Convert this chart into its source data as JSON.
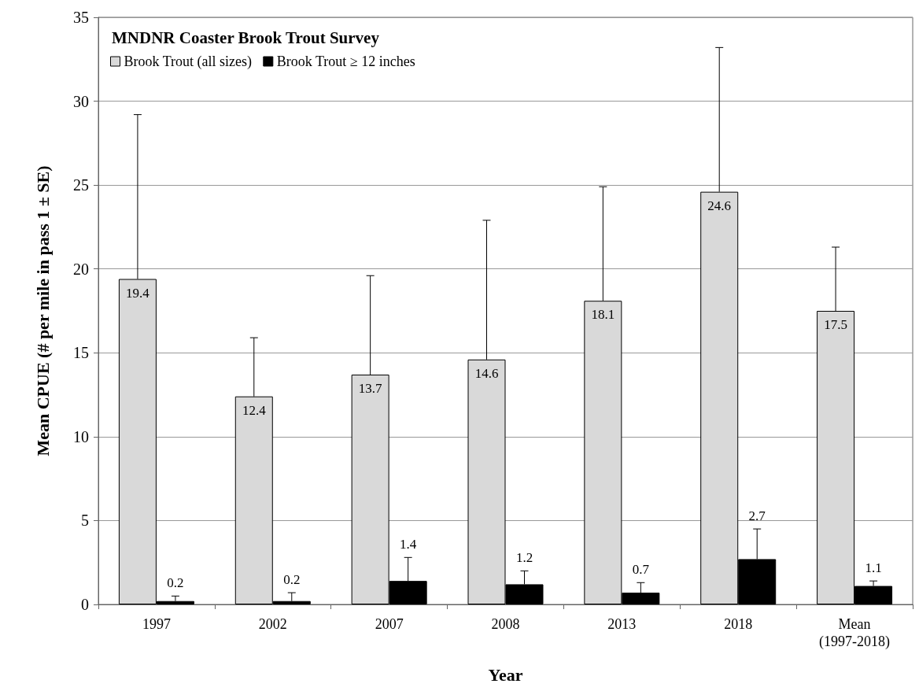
{
  "chart_data": {
    "type": "bar",
    "title": "MNDNR Coaster Brook Trout Survey",
    "xlabel": "Year",
    "ylabel": "Mean CPUE (# per mile in pass 1 ± SE)",
    "categories": [
      "1997",
      "2002",
      "2007",
      "2008",
      "2013",
      "2018",
      "Mean\n(1997-2018)"
    ],
    "series": [
      {
        "name": "Brook Trout (all sizes)",
        "color": "#d9d9d9",
        "values": [
          19.4,
          12.4,
          13.7,
          14.6,
          18.1,
          24.6,
          17.5
        ],
        "errors": [
          [
            19.4,
            29.2
          ],
          [
            12.4,
            15.9
          ],
          [
            13.7,
            19.6
          ],
          [
            14.6,
            22.9
          ],
          [
            18.1,
            24.9
          ],
          [
            24.6,
            33.2
          ],
          [
            17.5,
            21.3
          ]
        ]
      },
      {
        "name": "Brook Trout ≥ 12 inches",
        "color": "#000000",
        "values": [
          0.2,
          0.2,
          1.4,
          1.2,
          0.7,
          2.7,
          1.1
        ],
        "errors": [
          [
            0.2,
            0.5
          ],
          [
            0.2,
            0.7
          ],
          [
            1.4,
            2.8
          ],
          [
            1.2,
            2.0
          ],
          [
            0.7,
            1.3
          ],
          [
            2.7,
            4.5
          ],
          [
            1.1,
            1.4
          ]
        ]
      }
    ],
    "ylim": [
      0,
      35
    ],
    "yticks": [
      0,
      5,
      10,
      15,
      20,
      25,
      30,
      35
    ],
    "grid": "y",
    "legend": "top left",
    "data_labels": true
  }
}
